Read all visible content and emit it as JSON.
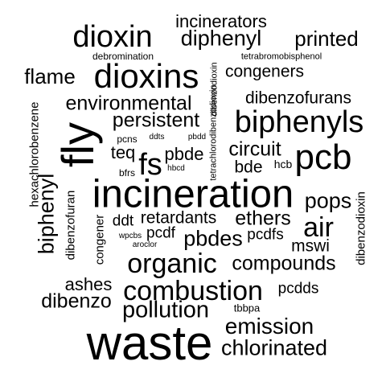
{
  "cloud": {
    "words": [
      "incinerators",
      "dioxin",
      "diphenyl",
      "printed",
      "debromination",
      "tetrabromobisphenol",
      "flame",
      "dioxins",
      "congeners",
      "environmental",
      "dibenzofurans",
      "persistent",
      "biphenyls",
      "pcns",
      "ddts",
      "pbdd",
      "teq",
      "pbde",
      "circuit",
      "pcb",
      "bfrs",
      "hbcd",
      "bde",
      "hcb",
      "fly",
      "fs",
      "hexachlorobenzene",
      "dibenzodioxin",
      "tetrachlorodibenzodioxin",
      "incineration",
      "pops",
      "biphenyl",
      "dibenzofuran",
      "congener",
      "ddt",
      "retardants",
      "ethers",
      "air",
      "wpcbs",
      "pcdf",
      "pbdes",
      "pcdfs",
      "aroclor",
      "mswi",
      "dibenzodioxin",
      "organic",
      "compounds",
      "ashes",
      "combustion",
      "pcdds",
      "dibenzo",
      "pollution",
      "tbbpa",
      "emission",
      "waste",
      "chlorinated"
    ]
  }
}
